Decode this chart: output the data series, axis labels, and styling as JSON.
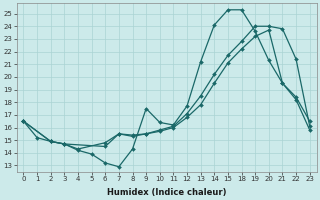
{
  "xlabel": "Humidex (Indice chaleur)",
  "background_color": "#cceaea",
  "grid_color": "#aad4d4",
  "line_color": "#1a6868",
  "tick_labels": [
    "0",
    "1",
    "2",
    "3",
    "4",
    "5",
    "6",
    "7",
    "8",
    "9",
    "10",
    "11",
    "12",
    "13",
    "14",
    "15",
    "18",
    "19",
    "20",
    "21",
    "22",
    "23"
  ],
  "yticks": [
    13,
    14,
    15,
    16,
    17,
    18,
    19,
    20,
    21,
    22,
    23,
    24,
    25
  ],
  "ylim": [
    12.5,
    25.8
  ],
  "lines": [
    {
      "xi": [
        0,
        1,
        2,
        3,
        4,
        5,
        6,
        7,
        8,
        9,
        10,
        11,
        12,
        13,
        14,
        15,
        16,
        17,
        18,
        19,
        20,
        21
      ],
      "y": [
        16.5,
        15.2,
        14.9,
        14.7,
        14.2,
        13.9,
        13.2,
        12.9,
        14.3,
        17.5,
        16.4,
        16.2,
        17.7,
        21.2,
        24.1,
        25.3,
        25.3,
        23.6,
        21.3,
        19.5,
        18.4,
        16.5
      ]
    },
    {
      "xi": [
        0,
        2,
        3,
        4,
        6,
        7,
        8,
        9,
        10,
        11,
        12,
        13,
        14,
        15,
        16,
        17,
        18,
        19,
        20,
        21
      ],
      "y": [
        16.5,
        14.9,
        14.7,
        14.3,
        14.8,
        15.5,
        15.3,
        15.5,
        15.8,
        16.1,
        17.1,
        18.5,
        20.2,
        21.7,
        22.8,
        24.0,
        24.0,
        23.8,
        21.4,
        16.1
      ]
    },
    {
      "xi": [
        0,
        2,
        3,
        6,
        7,
        8,
        9,
        10,
        11,
        12,
        13,
        14,
        15,
        16,
        17,
        18,
        19,
        20,
        21
      ],
      "y": [
        16.5,
        14.9,
        14.7,
        14.5,
        15.5,
        15.4,
        15.5,
        15.7,
        16.0,
        16.8,
        17.8,
        19.5,
        21.1,
        22.2,
        23.2,
        23.7,
        19.5,
        18.2,
        15.8
      ]
    }
  ]
}
